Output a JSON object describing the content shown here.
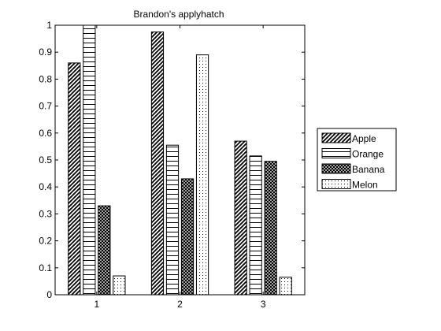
{
  "chart_data": {
    "type": "bar",
    "title": "Brandon's applyhatch",
    "xlabel": "",
    "ylabel": "",
    "categories": [
      "1",
      "2",
      "3"
    ],
    "ylim": [
      0,
      1
    ],
    "yticks": [
      "0",
      "0.1",
      "0.2",
      "0.3",
      "0.4",
      "0.5",
      "0.6",
      "0.7",
      "0.8",
      "0.9",
      "1"
    ],
    "grid": false,
    "legend_position": "right",
    "series": [
      {
        "name": "Apple",
        "pattern": "diagonal-hatch",
        "values": [
          0.86,
          0.975,
          0.57
        ]
      },
      {
        "name": "Orange",
        "pattern": "horizontal-lines",
        "values": [
          1.0,
          0.555,
          0.515
        ]
      },
      {
        "name": "Banana",
        "pattern": "crosshatch",
        "values": [
          0.33,
          0.43,
          0.495
        ]
      },
      {
        "name": "Melon",
        "pattern": "dots",
        "values": [
          0.07,
          0.89,
          0.065
        ]
      }
    ]
  }
}
